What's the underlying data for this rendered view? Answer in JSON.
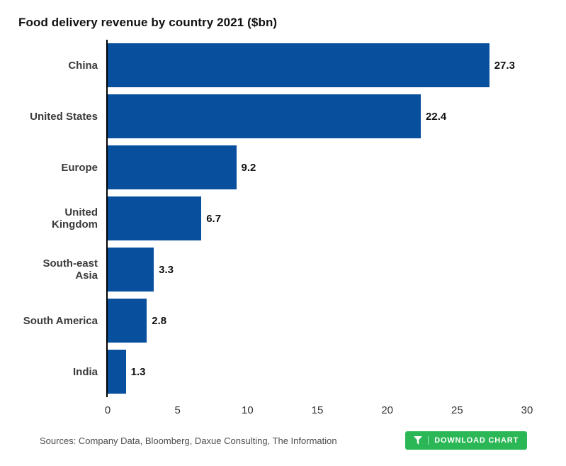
{
  "title": "Food delivery revenue by country 2021 ($bn)",
  "chart_data": {
    "type": "bar",
    "orientation": "horizontal",
    "title": "Food delivery revenue by country 2021 ($bn)",
    "categories": [
      "China",
      "United States",
      "Europe",
      "United Kingdom",
      "South-east Asia",
      "South America",
      "India"
    ],
    "values": [
      27.3,
      22.4,
      9.2,
      6.7,
      3.3,
      2.8,
      1.3
    ],
    "value_labels": [
      "27.3",
      "22.4",
      "9.2",
      "6.7",
      "3.3",
      "2.8",
      "1.3"
    ],
    "xlabel": "",
    "ylabel": "",
    "xlim": [
      0,
      30
    ],
    "x_ticks": [
      0,
      5,
      10,
      15,
      20,
      25,
      30
    ],
    "grid": false,
    "legend": "none",
    "bar_color": "#084f9d"
  },
  "footer": {
    "sources": "Sources: Company Data, Bloomberg, Daxue Consulting, The Information",
    "download_label": "DOWNLOAD CHART",
    "button_color": "#2cb757"
  }
}
